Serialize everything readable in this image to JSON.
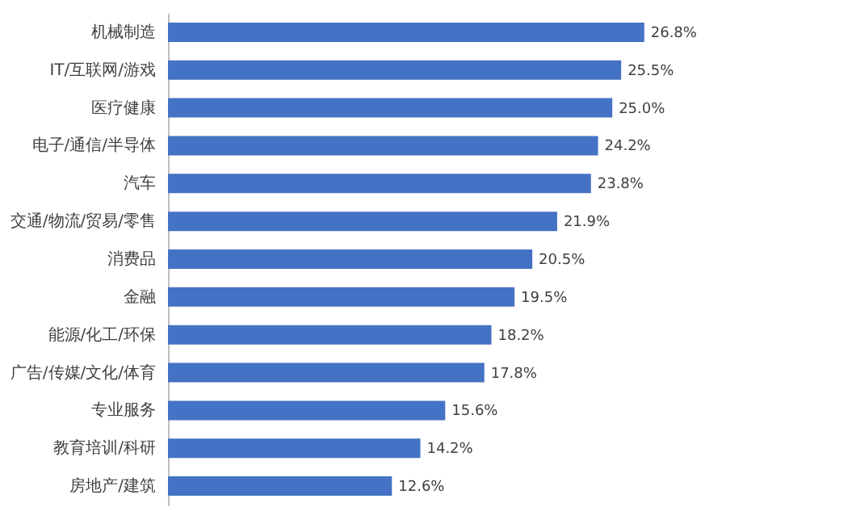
{
  "chart_data": {
    "type": "bar",
    "orientation": "horizontal",
    "categories": [
      "机械制造",
      "IT/互联网/游戏",
      "医疗健康",
      "电子/通信/半导体",
      "汽车",
      "交通/物流/贸易/零售",
      "消费品",
      "金融",
      "能源/化工/环保",
      "广告/传媒/文化/体育",
      "专业服务",
      "教育培训/科研",
      "房地产/建筑"
    ],
    "values": [
      26.8,
      25.5,
      25.0,
      24.2,
      23.8,
      21.9,
      20.5,
      19.5,
      18.2,
      17.8,
      15.6,
      14.2,
      12.6
    ],
    "value_labels": [
      "26.8%",
      "25.5%",
      "25.0%",
      "24.2%",
      "23.8%",
      "21.9%",
      "20.5%",
      "19.5%",
      "18.2%",
      "17.8%",
      "15.6%",
      "14.2%",
      "12.6%"
    ],
    "color": "#4472c4"
  }
}
